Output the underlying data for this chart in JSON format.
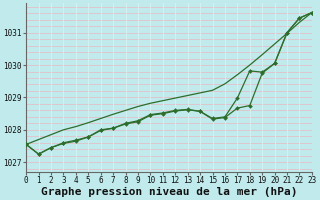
{
  "title": "Graphe pression niveau de la mer (hPa)",
  "bg_color": "#c0eaec",
  "grid_color_h": "#e8b8c0",
  "grid_color_v": "#d8f0f0",
  "line_color": "#2d6e2d",
  "x_labels": [
    "0",
    "1",
    "2",
    "3",
    "4",
    "5",
    "6",
    "7",
    "8",
    "9",
    "10",
    "11",
    "12",
    "13",
    "14",
    "15",
    "16",
    "17",
    "18",
    "19",
    "20",
    "21",
    "22",
    "23"
  ],
  "xlim": [
    0,
    23
  ],
  "ylim": [
    1026.7,
    1031.9
  ],
  "yticks": [
    1027,
    1028,
    1029,
    1030,
    1031
  ],
  "series1": [
    1027.55,
    1027.25,
    1027.45,
    1027.6,
    1027.68,
    1027.78,
    1028.0,
    1028.05,
    1028.18,
    1028.25,
    1028.45,
    1028.5,
    1028.58,
    1028.62,
    1028.57,
    1028.33,
    1028.38,
    1028.67,
    1028.75,
    1029.75,
    1030.05,
    1031.0,
    1031.45,
    1031.62
  ],
  "series2": [
    1027.55,
    1027.25,
    1027.45,
    1027.58,
    1027.65,
    1027.78,
    1027.98,
    1028.05,
    1028.2,
    1028.28,
    1028.47,
    1028.52,
    1028.6,
    1028.63,
    1028.57,
    1028.35,
    1028.4,
    1028.98,
    1029.82,
    1029.78,
    1030.05,
    1031.0,
    1031.45,
    1031.62
  ],
  "series_straight": [
    1027.55,
    1027.7,
    1027.85,
    1028.0,
    1028.1,
    1028.22,
    1028.35,
    1028.48,
    1028.6,
    1028.72,
    1028.82,
    1028.9,
    1028.98,
    1029.06,
    1029.14,
    1029.22,
    1029.42,
    1029.7,
    1030.0,
    1030.32,
    1030.65,
    1030.98,
    1031.32,
    1031.62
  ],
  "tick_fontsize": 5.5,
  "title_fontsize": 8.0
}
